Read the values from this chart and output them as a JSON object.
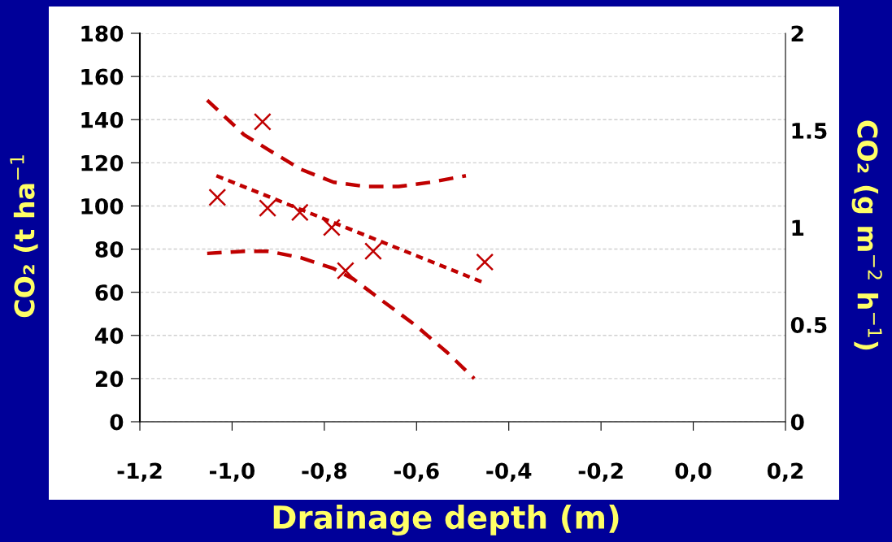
{
  "chart_data": {
    "type": "scatter",
    "xlabel": "Drainage depth (m)",
    "ylabel": "CO₂ (t ha$^{−1}$",
    "y2label": "CO₂ (g m$^{−2}$ h$^{−1}$)",
    "xlim": [
      -1.2,
      0.2
    ],
    "xticks": [
      {
        "value": -1.2,
        "label": "-1,2"
      },
      {
        "value": -1.0,
        "label": "-1,0"
      },
      {
        "value": -0.8,
        "label": "-0,8"
      },
      {
        "value": -0.6,
        "label": "-0,6"
      },
      {
        "value": -0.4,
        "label": "-0,4"
      },
      {
        "value": -0.2,
        "label": "-0,2"
      },
      {
        "value": 0.0,
        "label": "0,0"
      },
      {
        "value": 0.2,
        "label": "0,2"
      }
    ],
    "ylim": [
      0,
      180
    ],
    "yticks": [
      0,
      20,
      40,
      60,
      80,
      100,
      120,
      140,
      160,
      180
    ],
    "y2lim": [
      0,
      2
    ],
    "y2ticks": [
      0,
      0.5,
      1,
      1.5,
      2
    ],
    "grid": "y",
    "legend": false,
    "series": [
      {
        "marker": "cross",
        "color": "#c00000",
        "x": [
          -1.032,
          -0.934,
          -0.923,
          -0.853,
          -0.784,
          -0.754,
          -0.694,
          -0.452
        ],
        "values": [
          104,
          139,
          99,
          97,
          90,
          70,
          79,
          74
        ]
      },
      {
        "type": "line",
        "marker": "none",
        "line_style": "dotted",
        "color": "#c00000",
        "x": [
          -1.034,
          -0.449
        ],
        "values": [
          114,
          64
        ]
      },
      {
        "type": "line",
        "marker": "none",
        "line_style": "dashed",
        "color": "#c00000",
        "x": [
          -1.054,
          -0.974,
          -0.921,
          -0.851,
          -0.78,
          -0.71,
          -0.639,
          -0.569,
          -0.493
        ],
        "values": [
          149,
          133,
          126,
          117,
          111,
          109,
          109,
          111,
          114
        ]
      },
      {
        "type": "line",
        "marker": "none",
        "line_style": "dashed",
        "color": "#c00000",
        "x": [
          -1.054,
          -0.974,
          -0.921,
          -0.851,
          -0.78,
          -0.736,
          -0.674,
          -0.604,
          -0.533,
          -0.475
        ],
        "values": [
          78,
          79,
          79,
          76,
          71,
          66,
          56,
          45,
          32,
          20
        ]
      }
    ]
  }
}
